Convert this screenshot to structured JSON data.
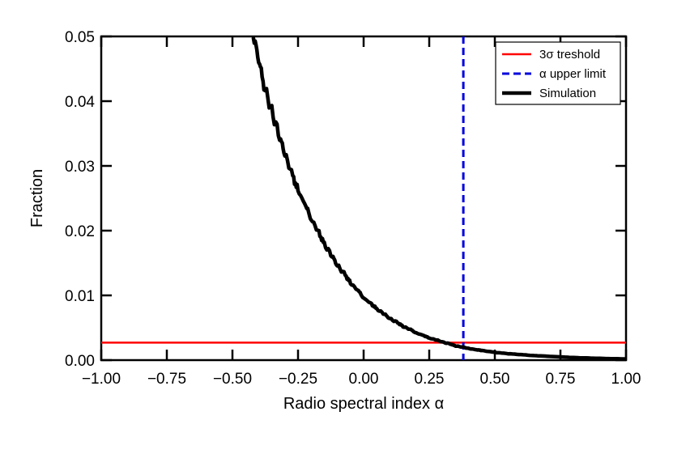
{
  "chart_data": {
    "type": "line",
    "xlabel": "Radio spectral index α",
    "ylabel": "Fraction",
    "xlim": [
      -1.0,
      1.0
    ],
    "ylim": [
      0.0,
      0.05
    ],
    "x_ticks": [
      "−1.00",
      "−0.75",
      "−0.50",
      "−0.25",
      "0.00",
      "0.25",
      "0.50",
      "0.75",
      "1.00"
    ],
    "x_tick_values": [
      -1.0,
      -0.75,
      -0.5,
      -0.25,
      0.0,
      0.25,
      0.5,
      0.75,
      1.0
    ],
    "y_ticks": [
      "0.00",
      "0.01",
      "0.02",
      "0.03",
      "0.04",
      "0.05"
    ],
    "y_tick_values": [
      0.0,
      0.01,
      0.02,
      0.03,
      0.04,
      0.05
    ],
    "grid": false,
    "legend_position": "top-right",
    "series": [
      {
        "name": "Simulation",
        "color": "#000000",
        "style": "solid",
        "x": [
          -0.42,
          -0.4,
          -0.38,
          -0.35,
          -0.32,
          -0.3,
          -0.27,
          -0.25,
          -0.22,
          -0.2,
          -0.17,
          -0.15,
          -0.12,
          -0.1,
          -0.07,
          -0.05,
          -0.02,
          0.0,
          0.03,
          0.05,
          0.08,
          0.1,
          0.13,
          0.15,
          0.18,
          0.2,
          0.23,
          0.25,
          0.28,
          0.3,
          0.33,
          0.35,
          0.38,
          0.4,
          0.43,
          0.45,
          0.5,
          0.55,
          0.6,
          0.65,
          0.7,
          0.75,
          0.8,
          0.85,
          0.9,
          0.95,
          1.0
        ],
        "y": [
          0.05,
          0.0465,
          0.0425,
          0.0385,
          0.0345,
          0.0318,
          0.0285,
          0.0262,
          0.0238,
          0.0218,
          0.0197,
          0.0179,
          0.0161,
          0.0146,
          0.0132,
          0.0119,
          0.0107,
          0.0096,
          0.0087,
          0.0079,
          0.0071,
          0.0064,
          0.0058,
          0.0052,
          0.0047,
          0.0042,
          0.0038,
          0.0034,
          0.0031,
          0.0028,
          0.0025,
          0.0022,
          0.002,
          0.0018,
          0.0016,
          0.0015,
          0.0012,
          0.001,
          0.00085,
          0.0007,
          0.0006,
          0.0005,
          0.0004,
          0.00033,
          0.00027,
          0.00022,
          0.00018
        ]
      },
      {
        "name": "3σ treshold",
        "color": "#ff0000",
        "style": "solid",
        "orientation": "horizontal",
        "y_value": 0.0027
      },
      {
        "name": "α upper limit",
        "color": "#0000dd",
        "style": "dashed",
        "orientation": "vertical",
        "x_value": 0.38
      }
    ]
  }
}
